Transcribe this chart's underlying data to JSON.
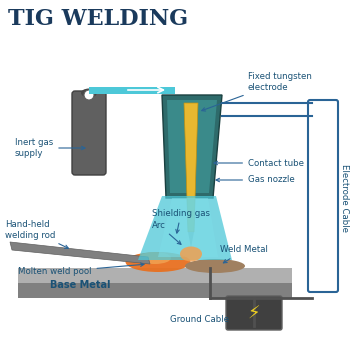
{
  "title": "TIG WELDING",
  "title_color": "#1a3a5c",
  "title_fontsize": 16,
  "bg_color": "#ffffff",
  "labels": {
    "inert_gas": "Inert gas\nsupply",
    "hand_held": "Hand-held\nwelding rod",
    "molten": "Molten weld pool",
    "base_metal": "Base Metal",
    "fixed_tungsten": "Fixed tungsten\nelectrode",
    "contact_tube": "Contact tube",
    "gas_nozzle": "Gas nozzle",
    "arc": "Arc",
    "shielding_gas": "Shielding gas",
    "weld_metal": "Weld Metal",
    "ground_cable": "Ground Cable",
    "electrode_cable": "Electrode Cable"
  },
  "colors": {
    "teal_dark": "#2e6b6b",
    "teal_light": "#3a8a8a",
    "cyan": "#4dc8d8",
    "cyan_light": "#7ddde8",
    "orange": "#e87020",
    "orange_light": "#f0a050",
    "yellow": "#e8b830",
    "gray_dark": "#606060",
    "gray_med": "#808080",
    "gray_light": "#b0b0b0",
    "gray_bg": "#d0d0d0",
    "arrow_blue": "#2a6496",
    "label_blue": "#1a5276",
    "wire_gray": "#505050",
    "ground_box": "#404040",
    "lightning": "#f0d020"
  }
}
